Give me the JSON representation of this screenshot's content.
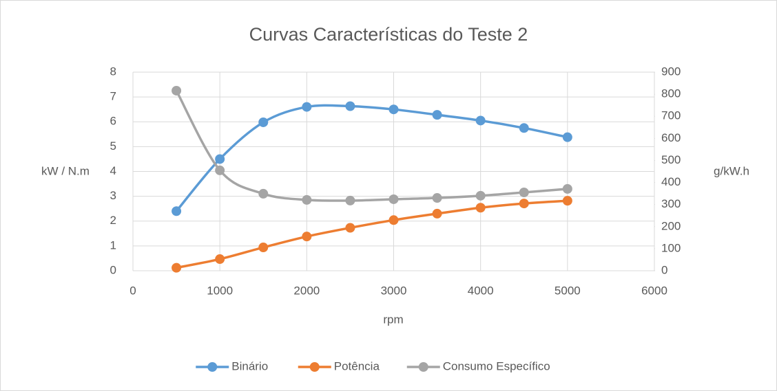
{
  "chart_data": {
    "type": "line",
    "title": "Curvas Características do Teste 2",
    "x": [
      500,
      1000,
      1500,
      2000,
      2500,
      3000,
      3500,
      4000,
      4500,
      5000
    ],
    "xlim": [
      0,
      6000
    ],
    "xticks": [
      0,
      1000,
      2000,
      3000,
      4000,
      5000,
      6000
    ],
    "ylim": [
      0,
      8
    ],
    "yticks": [
      0,
      1,
      2,
      3,
      4,
      5,
      6,
      7,
      8
    ],
    "y2lim": [
      0,
      900
    ],
    "y2ticks": [
      0,
      100,
      200,
      300,
      400,
      500,
      600,
      700,
      800,
      900
    ],
    "xlabel": "rpm",
    "ylabel": "kW / N.m",
    "y2label": "g/kW.h",
    "grid": true,
    "smooth": true,
    "legend": "bottom",
    "series": [
      {
        "name": "Binário",
        "color": "#5b9bd5",
        "values": [
          2.4,
          4.5,
          5.98,
          6.6,
          6.63,
          6.5,
          6.28,
          6.05,
          5.75,
          5.38
        ]
      },
      {
        "name": "Potência",
        "color": "#ed7d31",
        "values": [
          0.12,
          0.47,
          0.94,
          1.38,
          1.73,
          2.04,
          2.3,
          2.54,
          2.71,
          2.82
        ]
      },
      {
        "name": "Consumo Específico",
        "color": "#a5a5a5",
        "axis": "y2",
        "values": [
          816,
          455,
          349,
          321,
          318,
          324,
          330,
          340,
          355,
          371
        ]
      }
    ]
  }
}
